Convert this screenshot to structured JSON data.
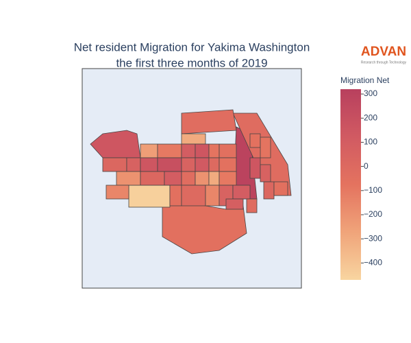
{
  "chart_data": {
    "type": "choropleth",
    "title": "Net resident Migration for Yakima Washington",
    "subtitle": "the first three months of 2019",
    "logo": "ADVAN",
    "logo_tagline": "Research through Technology",
    "colorbar_title": "Migration Net",
    "zlim": [
      -470,
      320
    ],
    "colorscale": [
      "#f8d5a0",
      "#f0a47a",
      "#e4735f",
      "#d15a62",
      "#b8405e"
    ],
    "zticks": [
      300,
      200,
      100,
      0,
      {
        "value": -100,
        "label": "−100"
      },
      {
        "value": -200,
        "label": "−200"
      },
      {
        "value": -300,
        "label": "−300"
      },
      {
        "value": -400,
        "label": "−400"
      }
    ],
    "values": [
      150,
      -50,
      -450,
      300,
      -20,
      -30,
      -300,
      -250,
      -100,
      100,
      150,
      -80,
      -50,
      20,
      60,
      150,
      200,
      50,
      120,
      0,
      -60,
      -200,
      20,
      100,
      -30,
      -200,
      -300,
      -100,
      -150,
      -50,
      0,
      -150,
      50,
      100,
      -60,
      -80,
      150,
      60,
      20,
      -50,
      -20,
      80
    ]
  }
}
